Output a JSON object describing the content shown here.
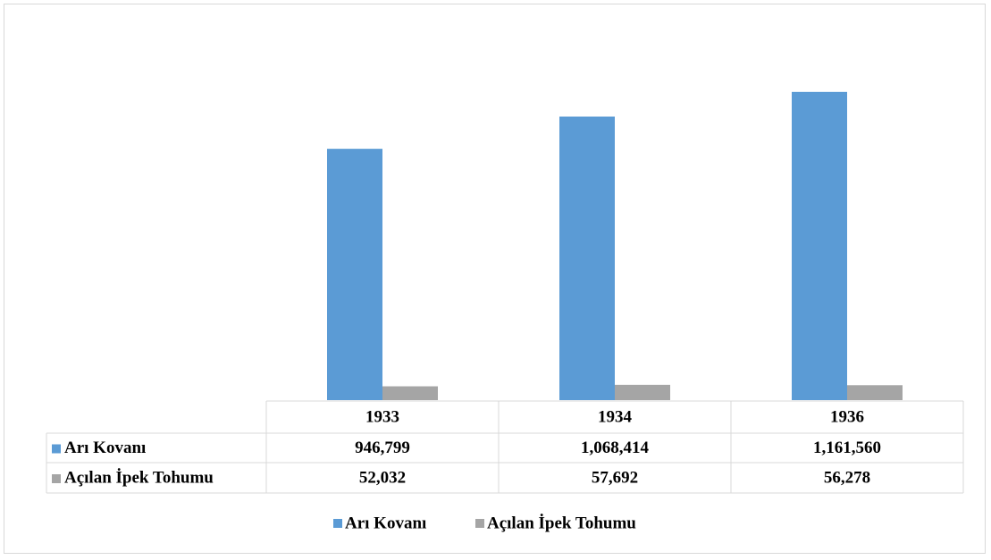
{
  "chart_data": {
    "type": "bar",
    "categories": [
      "1933",
      "1934",
      "1936"
    ],
    "series": [
      {
        "name": "Arı Kovanı",
        "color": "#5b9bd5",
        "values": [
          946799,
          1068414,
          1161560
        ],
        "value_labels": [
          "946,799",
          "1,068,414",
          "1,161,560"
        ]
      },
      {
        "name": "Açılan İpek Tohumu",
        "color": "#a5a5a5",
        "values": [
          52032,
          57692,
          56278
        ],
        "value_labels": [
          "52,032",
          "57,692",
          "56,278"
        ]
      }
    ],
    "ylim": [
      0,
      1400000
    ]
  }
}
